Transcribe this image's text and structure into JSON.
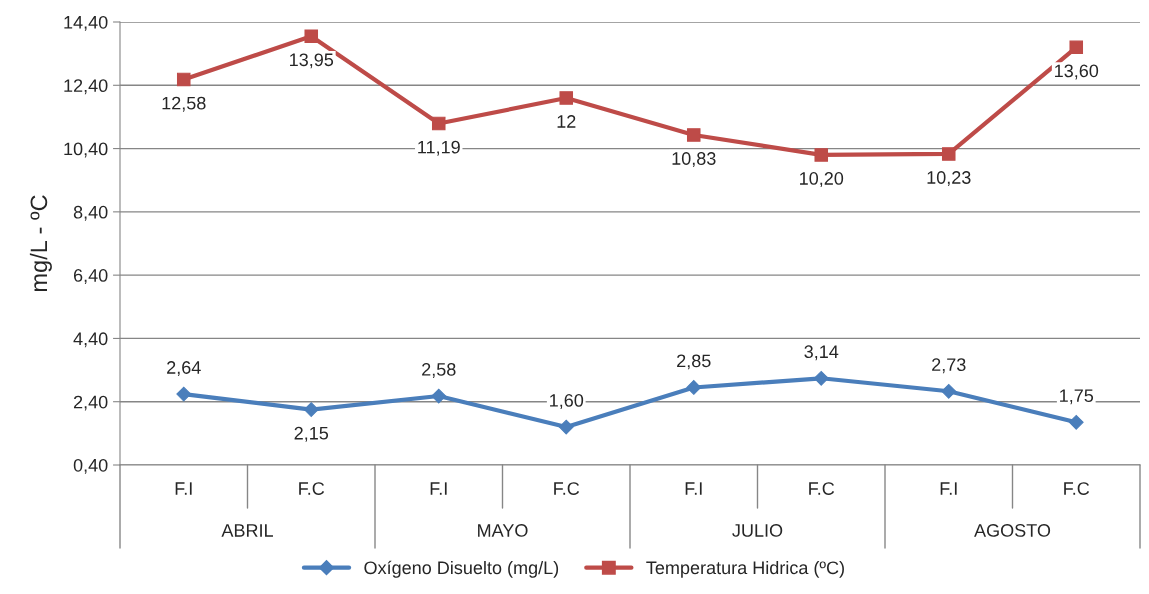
{
  "chart_data": {
    "type": "line",
    "ylabel": "mg/L - ºC",
    "categories": [
      "F.I",
      "F.C",
      "F.I",
      "F.C",
      "F.I",
      "F.C",
      "F.I",
      "F.C"
    ],
    "annotations": [
      "ABRIL",
      "MAYO",
      "JULIO",
      "AGOSTO"
    ],
    "series": [
      {
        "name": "Oxígeno Disuelto (mg/L)",
        "color": "#4a7ebb",
        "marker": "diamond",
        "values": [
          2.64,
          2.15,
          2.58,
          1.6,
          2.85,
          3.14,
          2.73,
          1.75
        ],
        "value_labels": [
          "2,64",
          "2,15",
          "2,58",
          "1,60",
          "2,85",
          "3,14",
          "2,73",
          "1,75"
        ]
      },
      {
        "name": "Temperatura Hidrica (ºC)",
        "color": "#be4b48",
        "marker": "square",
        "values": [
          12.58,
          13.95,
          11.19,
          12,
          10.83,
          10.2,
          10.23,
          13.6
        ],
        "value_labels": [
          "12,58",
          "13,95",
          "11,19",
          "12",
          "10,83",
          "10,20",
          "10,23",
          "13,60"
        ]
      }
    ],
    "ylim": [
      0.4,
      14.4
    ],
    "yticks": [
      {
        "value": 0.4,
        "label": "0,40"
      },
      {
        "value": 2.4,
        "label": "2,40"
      },
      {
        "value": 4.4,
        "label": "4,40"
      },
      {
        "value": 6.4,
        "label": "6,40"
      },
      {
        "value": 8.4,
        "label": "8,40"
      },
      {
        "value": 10.4,
        "label": "10,40"
      },
      {
        "value": 12.4,
        "label": "12,40"
      },
      {
        "value": 14.4,
        "label": "14,40"
      }
    ],
    "grid": "y",
    "legend": "bottom",
    "line_style": "solid"
  }
}
